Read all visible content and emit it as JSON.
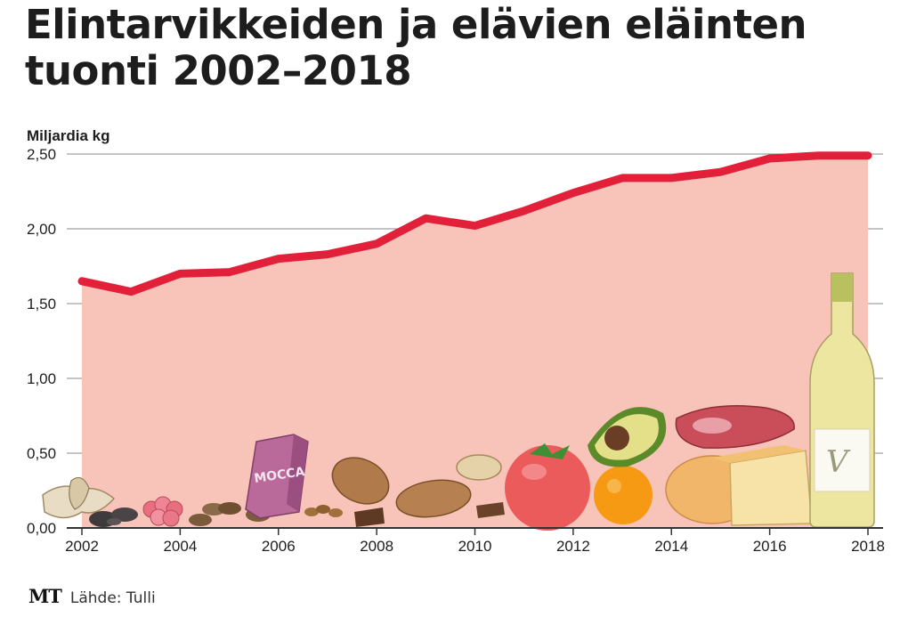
{
  "header": {
    "title_line1": "Elintarvikkeiden ja elävien eläinten",
    "title_line2": "tuonti 2002–2018"
  },
  "footer": {
    "logo": "MT",
    "source": "Lähde: Tulli"
  },
  "colors": {
    "line": "#e2203a",
    "area": "#f8c3b8",
    "grid": "#8a8a8a",
    "axis": "#333333"
  },
  "chart_data": {
    "type": "area",
    "ylabel": "Miljardia kg",
    "x": [
      2002,
      2003,
      2004,
      2005,
      2006,
      2007,
      2008,
      2009,
      2010,
      2011,
      2012,
      2013,
      2014,
      2015,
      2016,
      2017,
      2018
    ],
    "series": [
      {
        "values": [
          1.65,
          1.58,
          1.7,
          1.71,
          1.8,
          1.83,
          1.9,
          2.07,
          2.02,
          2.12,
          2.24,
          2.34,
          2.34,
          2.38,
          2.47,
          2.49,
          2.49
        ]
      }
    ],
    "xticks": [
      "2002",
      "2004",
      "2006",
      "2008",
      "2010",
      "2012",
      "2014",
      "2016",
      "2018"
    ],
    "yticks": [
      "0,00",
      "0,50",
      "1,00",
      "1,50",
      "2,00",
      "2,50"
    ],
    "ylim": [
      0,
      2.5
    ],
    "grid": true,
    "illustrations": [
      "coffee-beans",
      "cocoa-beans",
      "grapes",
      "coffee-package-icon",
      "almonds",
      "walnuts",
      "chocolate",
      "tomato",
      "orange",
      "avocado",
      "meat",
      "cheese",
      "wine-bottle"
    ],
    "coffee_package_text": "MOCCA"
  }
}
